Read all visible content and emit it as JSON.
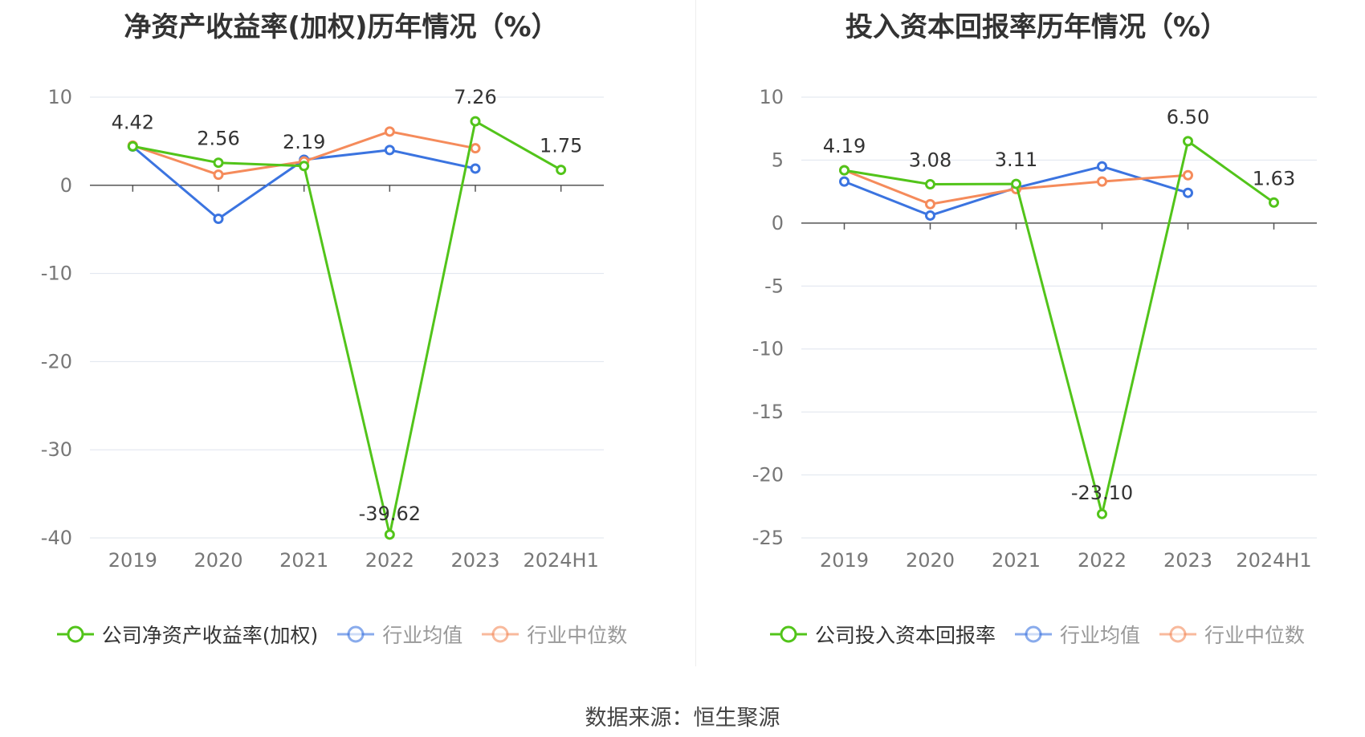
{
  "source_label": "数据来源：恒生聚源",
  "chart_data": [
    {
      "type": "line",
      "title": "净资产收益率(加权)历年情况（%）",
      "categories": [
        "2019",
        "2020",
        "2021",
        "2022",
        "2023",
        "2024H1"
      ],
      "ylim": [
        -40,
        10
      ],
      "yticks": [
        10,
        0,
        -10,
        -20,
        -30,
        -40
      ],
      "grid": true,
      "legend_position": "bottom-center",
      "series": [
        {
          "name": "公司净资产收益率(加权)",
          "color": "#52c41a",
          "values": [
            4.42,
            2.56,
            2.19,
            -39.62,
            7.26,
            1.75
          ],
          "data_labels": [
            "4.42",
            "2.56",
            "2.19",
            "-39.62",
            "7.26",
            "1.75"
          ]
        },
        {
          "name": "行业均值",
          "color": "#3b74e0",
          "values": [
            4.4,
            -3.8,
            2.9,
            4.0,
            1.9,
            null
          ]
        },
        {
          "name": "行业中位数",
          "color": "#f58b5b",
          "values": [
            4.5,
            1.2,
            2.7,
            6.1,
            4.2,
            null
          ]
        }
      ]
    },
    {
      "type": "line",
      "title": "投入资本回报率历年情况（%）",
      "categories": [
        "2019",
        "2020",
        "2021",
        "2022",
        "2023",
        "2024H1"
      ],
      "ylim": [
        -25,
        10
      ],
      "yticks": [
        10,
        5,
        0,
        -5,
        -10,
        -15,
        -20,
        -25
      ],
      "grid": true,
      "legend_position": "bottom-center",
      "series": [
        {
          "name": "公司投入资本回报率",
          "color": "#52c41a",
          "values": [
            4.19,
            3.08,
            3.11,
            -23.1,
            6.5,
            1.63
          ],
          "data_labels": [
            "4.19",
            "3.08",
            "3.11",
            "-23.10",
            "6.50",
            "1.63"
          ]
        },
        {
          "name": "行业均值",
          "color": "#3b74e0",
          "values": [
            3.3,
            0.6,
            2.8,
            4.5,
            2.4,
            null
          ]
        },
        {
          "name": "行业中位数",
          "color": "#f58b5b",
          "values": [
            4.2,
            1.5,
            2.7,
            3.3,
            3.8,
            null
          ]
        }
      ]
    }
  ]
}
